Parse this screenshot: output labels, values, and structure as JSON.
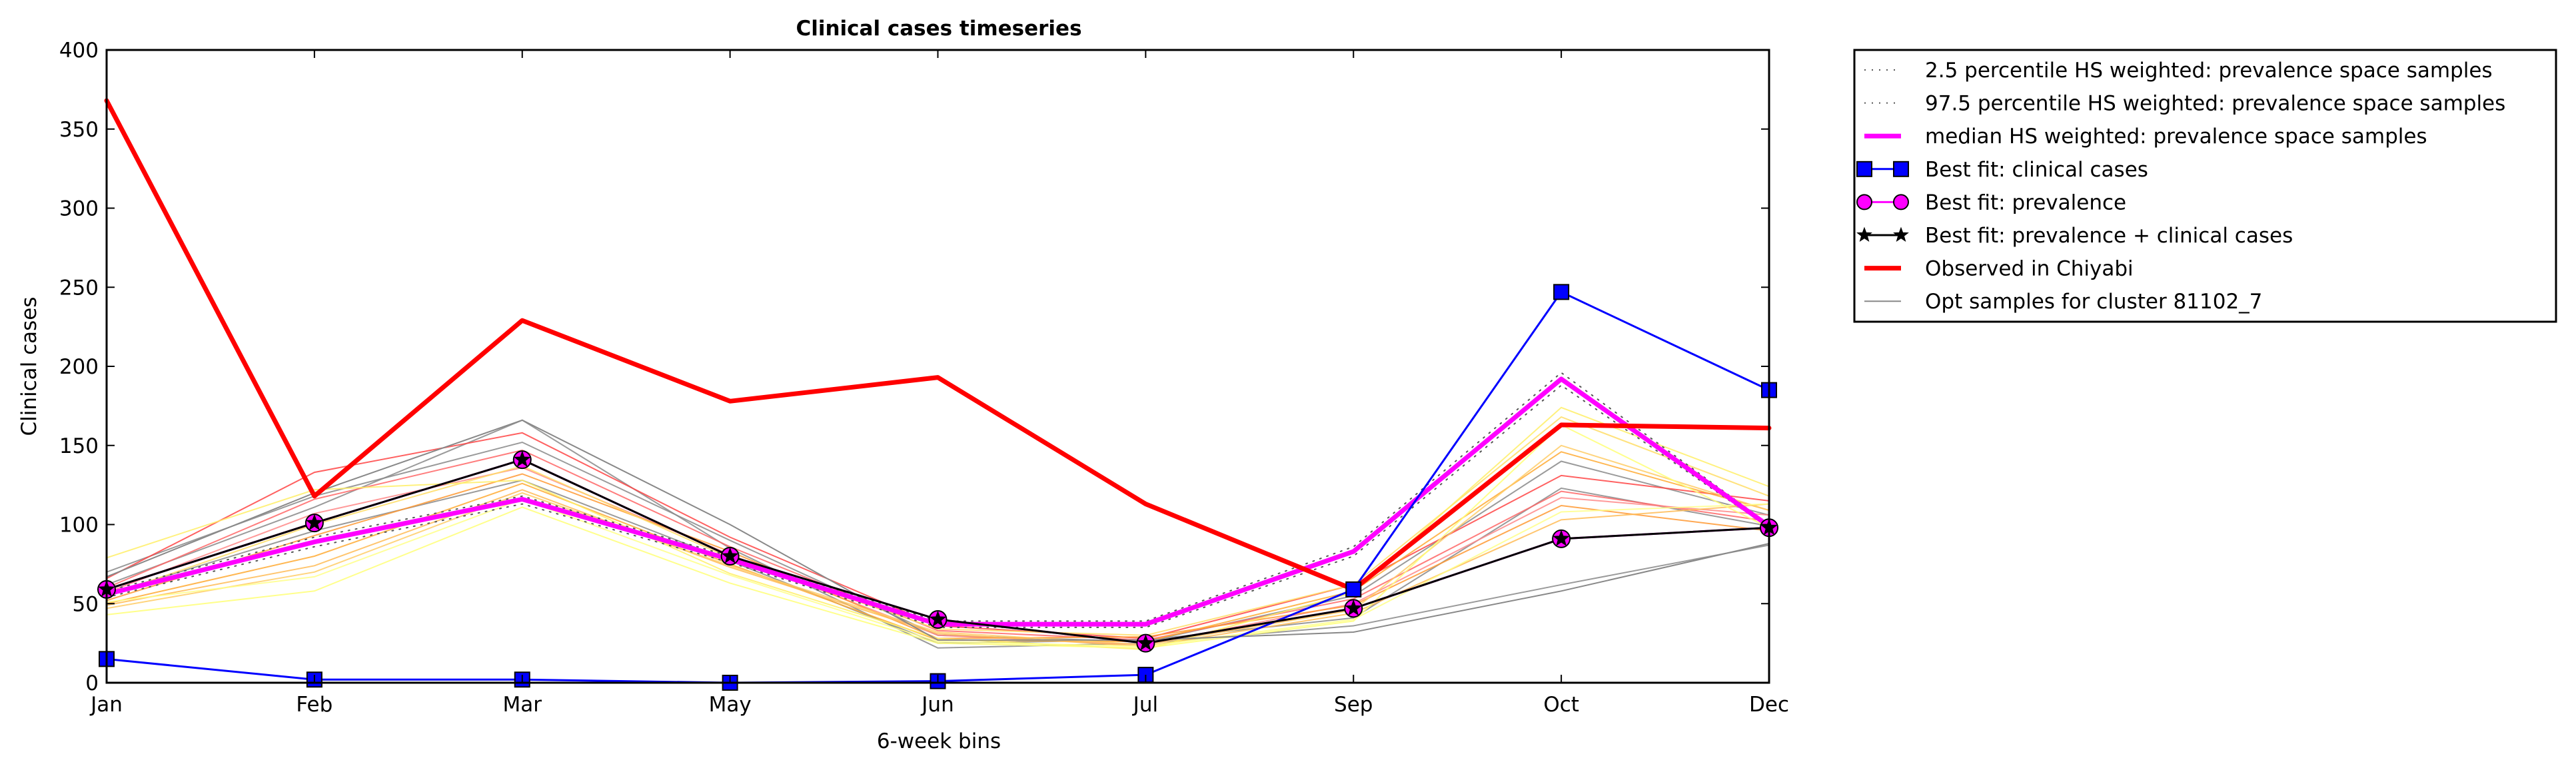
{
  "chart_data": {
    "type": "line",
    "title": "Clinical cases timeseries",
    "xlabel": "6-week bins",
    "ylabel": "Clinical cases",
    "categories": [
      "Jan",
      "Feb",
      "Mar",
      "May",
      "Jun",
      "Jul",
      "Sep",
      "Oct",
      "Dec"
    ],
    "ylim": [
      0,
      400
    ],
    "yticks": [
      0,
      50,
      100,
      150,
      200,
      250,
      300,
      350,
      400
    ],
    "grid": false,
    "legend_position": "outside-right",
    "series": [
      {
        "name": "2.5 percentile HS weighted: prevalence space samples",
        "color": "#555555",
        "style": "dotted",
        "values": [
          54,
          86,
          113,
          76,
          35,
          35,
          80,
          188,
          98
        ]
      },
      {
        "name": "97.5 percentile HS weighted: prevalence space samples",
        "color": "#555555",
        "style": "dotted",
        "values": [
          58,
          92,
          118,
          80,
          39,
          39,
          86,
          196,
          100
        ]
      },
      {
        "name": "median HS weighted: prevalence space samples",
        "color": "#ff00ff",
        "style": "solid-thick",
        "values": [
          56,
          89,
          116,
          78,
          37,
          37,
          83,
          192,
          99
        ]
      },
      {
        "name": "Best fit: clinical cases",
        "color": "#0000ff",
        "style": "line-square",
        "values": [
          15,
          2,
          2,
          0,
          1,
          5,
          59,
          247,
          185
        ]
      },
      {
        "name": "Best fit: prevalence",
        "color": "#ff00ff",
        "style": "line-circle",
        "values": [
          59,
          101,
          141,
          80,
          40,
          25,
          47,
          91,
          98
        ]
      },
      {
        "name": "Best fit: prevalence + clinical cases",
        "color": "#000000",
        "style": "line-star",
        "values": [
          59,
          101,
          141,
          80,
          40,
          25,
          47,
          91,
          98
        ]
      },
      {
        "name": "Observed in Chiyabi",
        "color": "#ff0000",
        "style": "solid-thick",
        "values": [
          368,
          118,
          229,
          178,
          193,
          113,
          59,
          163,
          161
        ]
      },
      {
        "name": "Opt samples for cluster 81102_7",
        "color": "#888888",
        "style": "thin",
        "values": [
          67,
          120,
          166,
          100,
          27,
          27,
          32,
          58,
          88
        ]
      }
    ],
    "samples": [
      {
        "color": "#888888",
        "values": [
          62,
          111,
          166,
          85,
          22,
          25,
          36,
          62,
          87
        ]
      },
      {
        "color": "#888888",
        "values": [
          56,
          96,
          128,
          77,
          25,
          27,
          41,
          123,
          99
        ]
      },
      {
        "color": "#888888",
        "values": [
          70,
          118,
          152,
          90,
          30,
          26,
          55,
          140,
          106
        ]
      },
      {
        "color": "#ff4444",
        "values": [
          66,
          133,
          158,
          92,
          36,
          28,
          62,
          131,
          115
        ]
      },
      {
        "color": "#ff6666",
        "values": [
          60,
          116,
          147,
          86,
          33,
          27,
          53,
          121,
          102
        ]
      },
      {
        "color": "#ff8888",
        "values": [
          57,
          107,
          136,
          81,
          30,
          24,
          50,
          117,
          106
        ]
      },
      {
        "color": "#ff9933",
        "values": [
          52,
          93,
          132,
          83,
          28,
          29,
          49,
          112,
          96
        ]
      },
      {
        "color": "#ffaa33",
        "values": [
          50,
          80,
          126,
          75,
          27,
          26,
          58,
          146,
          109
        ]
      },
      {
        "color": "#ffbb55",
        "values": [
          49,
          74,
          122,
          73,
          31,
          23,
          44,
          103,
          113
        ]
      },
      {
        "color": "#ffcc66",
        "values": [
          47,
          70,
          120,
          74,
          32,
          24,
          46,
          150,
          109
        ]
      },
      {
        "color": "#ffdd66",
        "values": [
          55,
          100,
          137,
          79,
          34,
          30,
          62,
          168,
          118
        ]
      },
      {
        "color": "#ffee66",
        "values": [
          79,
          122,
          128,
          69,
          28,
          21,
          57,
          174,
          124
        ]
      },
      {
        "color": "#ffff77",
        "values": [
          43,
          58,
          111,
          63,
          25,
          22,
          39,
          163,
          98
        ]
      },
      {
        "color": "#ffff88",
        "values": [
          51,
          67,
          116,
          68,
          26,
          23,
          40,
          108,
          113
        ]
      }
    ]
  }
}
